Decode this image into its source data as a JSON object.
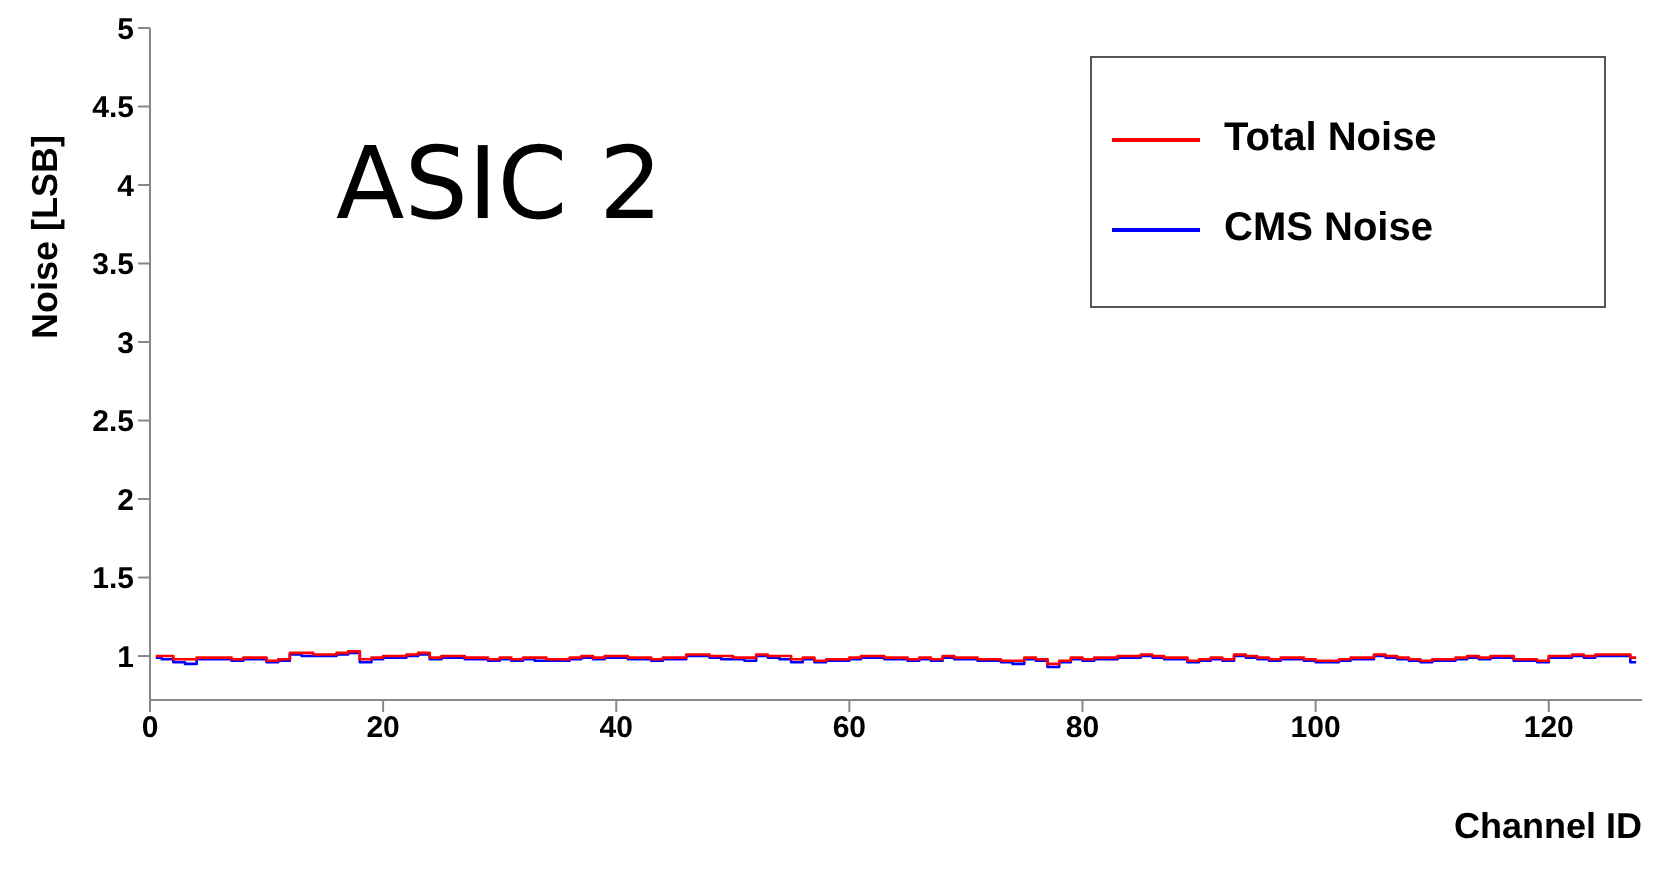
{
  "chart_data": {
    "type": "step",
    "xlabel": "Channel ID",
    "ylabel": "Noise [LSB]",
    "annotations": [
      "ASIC 2"
    ],
    "x": [
      0.5,
      1.5,
      2.5,
      3.5,
      4.5,
      5.5,
      6.5,
      7.5,
      8.5,
      9.5,
      10.5,
      11.5,
      12.5,
      13.5,
      14.5,
      15.5,
      16.5,
      17.5,
      18.5,
      19.5,
      20.5,
      21.5,
      22.5,
      23.5,
      24.5,
      25.5,
      26.5,
      27.5,
      28.5,
      29.5,
      30.5,
      31.5,
      32.5,
      33.5,
      34.5,
      35.5,
      36.5,
      37.5,
      38.5,
      39.5,
      40.5,
      41.5,
      42.5,
      43.5,
      44.5,
      45.5,
      46.5,
      47.5,
      48.5,
      49.5,
      50.5,
      51.5,
      52.5,
      53.5,
      54.5,
      55.5,
      56.5,
      57.5,
      58.5,
      59.5,
      60.5,
      61.5,
      62.5,
      63.5,
      64.5,
      65.5,
      66.5,
      67.5,
      68.5,
      69.5,
      70.5,
      71.5,
      72.5,
      73.5,
      74.5,
      75.5,
      76.5,
      77.5,
      78.5,
      79.5,
      80.5,
      81.5,
      82.5,
      83.5,
      84.5,
      85.5,
      86.5,
      87.5,
      88.5,
      89.5,
      90.5,
      91.5,
      92.5,
      93.5,
      94.5,
      95.5,
      96.5,
      97.5,
      98.5,
      99.5,
      100.5,
      101.5,
      102.5,
      103.5,
      104.5,
      105.5,
      106.5,
      107.5,
      108.5,
      109.5,
      110.5,
      111.5,
      112.5,
      113.5,
      114.5,
      115.5,
      116.5,
      117.5,
      118.5,
      119.5,
      120.5,
      121.5,
      122.5,
      123.5,
      124.5,
      125.5,
      126.5,
      127.5
    ],
    "series": [
      {
        "name": "Total Noise",
        "color": "#ff0000",
        "values": [
          1.0,
          1.0,
          0.98,
          0.98,
          0.99,
          0.99,
          0.99,
          0.98,
          0.99,
          0.99,
          0.97,
          0.98,
          1.02,
          1.02,
          1.01,
          1.01,
          1.02,
          1.03,
          0.98,
          0.99,
          1.0,
          1.0,
          1.01,
          1.02,
          0.99,
          1.0,
          1.0,
          0.99,
          0.99,
          0.98,
          0.99,
          0.98,
          0.99,
          0.99,
          0.98,
          0.98,
          0.99,
          1.0,
          0.99,
          1.0,
          1.0,
          0.99,
          0.99,
          0.98,
          0.99,
          0.99,
          1.01,
          1.01,
          1.0,
          1.0,
          0.99,
          0.99,
          1.01,
          1.0,
          1.0,
          0.98,
          0.99,
          0.97,
          0.98,
          0.98,
          0.99,
          1.0,
          1.0,
          0.99,
          0.99,
          0.98,
          0.99,
          0.98,
          1.0,
          0.99,
          0.99,
          0.98,
          0.98,
          0.97,
          0.97,
          0.99,
          0.98,
          0.95,
          0.97,
          0.99,
          0.98,
          0.99,
          0.99,
          1.0,
          1.0,
          1.01,
          1.0,
          0.99,
          0.99,
          0.97,
          0.98,
          0.99,
          0.98,
          1.01,
          1.0,
          0.99,
          0.98,
          0.99,
          0.99,
          0.98,
          0.97,
          0.97,
          0.98,
          0.99,
          0.99,
          1.01,
          1.0,
          0.99,
          0.98,
          0.97,
          0.98,
          0.98,
          0.99,
          1.0,
          0.99,
          1.0,
          1.0,
          0.98,
          0.98,
          0.97,
          1.0,
          1.0,
          1.01,
          1.0,
          1.01,
          1.01,
          1.01,
          0.99
        ]
      },
      {
        "name": "CMS Noise",
        "color": "#0000ff",
        "values": [
          0.99,
          0.98,
          0.96,
          0.95,
          0.98,
          0.98,
          0.98,
          0.97,
          0.98,
          0.98,
          0.96,
          0.97,
          1.01,
          1.0,
          1.0,
          1.0,
          1.01,
          1.02,
          0.96,
          0.98,
          0.99,
          0.99,
          1.0,
          1.01,
          0.98,
          0.99,
          0.99,
          0.98,
          0.98,
          0.97,
          0.98,
          0.97,
          0.98,
          0.97,
          0.97,
          0.97,
          0.98,
          0.99,
          0.98,
          0.99,
          0.99,
          0.98,
          0.98,
          0.97,
          0.98,
          0.98,
          1.0,
          1.0,
          0.99,
          0.98,
          0.98,
          0.97,
          1.0,
          0.99,
          0.98,
          0.96,
          0.98,
          0.96,
          0.97,
          0.97,
          0.98,
          0.99,
          0.99,
          0.98,
          0.98,
          0.97,
          0.98,
          0.97,
          0.99,
          0.98,
          0.98,
          0.97,
          0.97,
          0.96,
          0.95,
          0.98,
          0.97,
          0.93,
          0.96,
          0.98,
          0.97,
          0.98,
          0.98,
          0.99,
          0.99,
          1.0,
          0.99,
          0.98,
          0.98,
          0.96,
          0.97,
          0.98,
          0.97,
          1.0,
          0.99,
          0.98,
          0.97,
          0.98,
          0.98,
          0.97,
          0.96,
          0.96,
          0.97,
          0.98,
          0.98,
          1.0,
          0.99,
          0.98,
          0.97,
          0.96,
          0.97,
          0.97,
          0.98,
          0.99,
          0.98,
          0.99,
          0.99,
          0.97,
          0.97,
          0.96,
          0.99,
          0.99,
          1.0,
          0.99,
          1.0,
          1.0,
          1.0,
          0.96
        ]
      }
    ],
    "xlim": [
      0,
      128
    ],
    "xticks": [
      0,
      20,
      40,
      60,
      80,
      100,
      120
    ],
    "ylim": [
      0.72,
      5
    ],
    "yticks": [
      1,
      1.5,
      2,
      2.5,
      3,
      3.5,
      4,
      4.5,
      5
    ],
    "grid": false,
    "legend": "top right",
    "marker": "none",
    "line_style": "solid"
  }
}
